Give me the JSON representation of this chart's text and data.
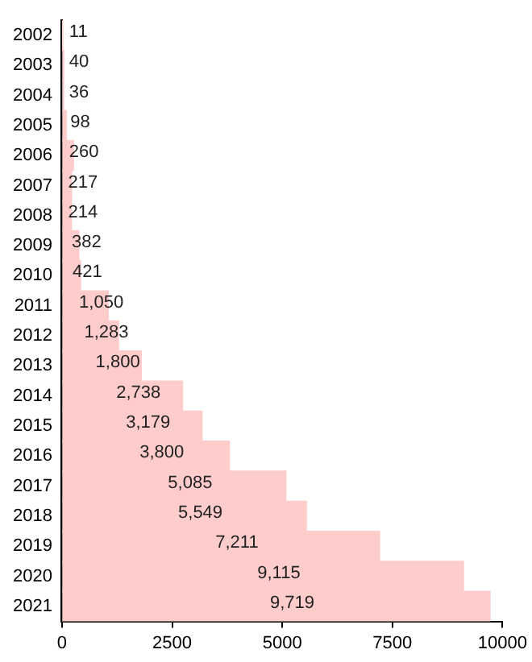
{
  "chart_data": {
    "type": "bar",
    "orientation": "horizontal",
    "categories": [
      "2002",
      "2003",
      "2004",
      "2005",
      "2006",
      "2007",
      "2008",
      "2009",
      "2010",
      "2011",
      "2012",
      "2013",
      "2014",
      "2015",
      "2016",
      "2017",
      "2018",
      "2019",
      "2020",
      "2021"
    ],
    "values": [
      11,
      40,
      36,
      98,
      260,
      217,
      214,
      382,
      421,
      1050,
      1283,
      1800,
      2738,
      3179,
      3800,
      5085,
      5549,
      7211,
      9115,
      9719
    ],
    "value_labels": [
      "11",
      "40",
      "36",
      "98",
      "260",
      "217",
      "214",
      "382",
      "421",
      "1,050",
      "1,283",
      "1,800",
      "2,738",
      "3,179",
      "3,800",
      "5,085",
      "5,549",
      "7,211",
      "9,115",
      "9,719"
    ],
    "color": "#ffcccc",
    "xlim": [
      0,
      10000
    ],
    "xticks": [
      0,
      2500,
      5000,
      7500,
      10000
    ],
    "grid": false,
    "legend": false
  }
}
